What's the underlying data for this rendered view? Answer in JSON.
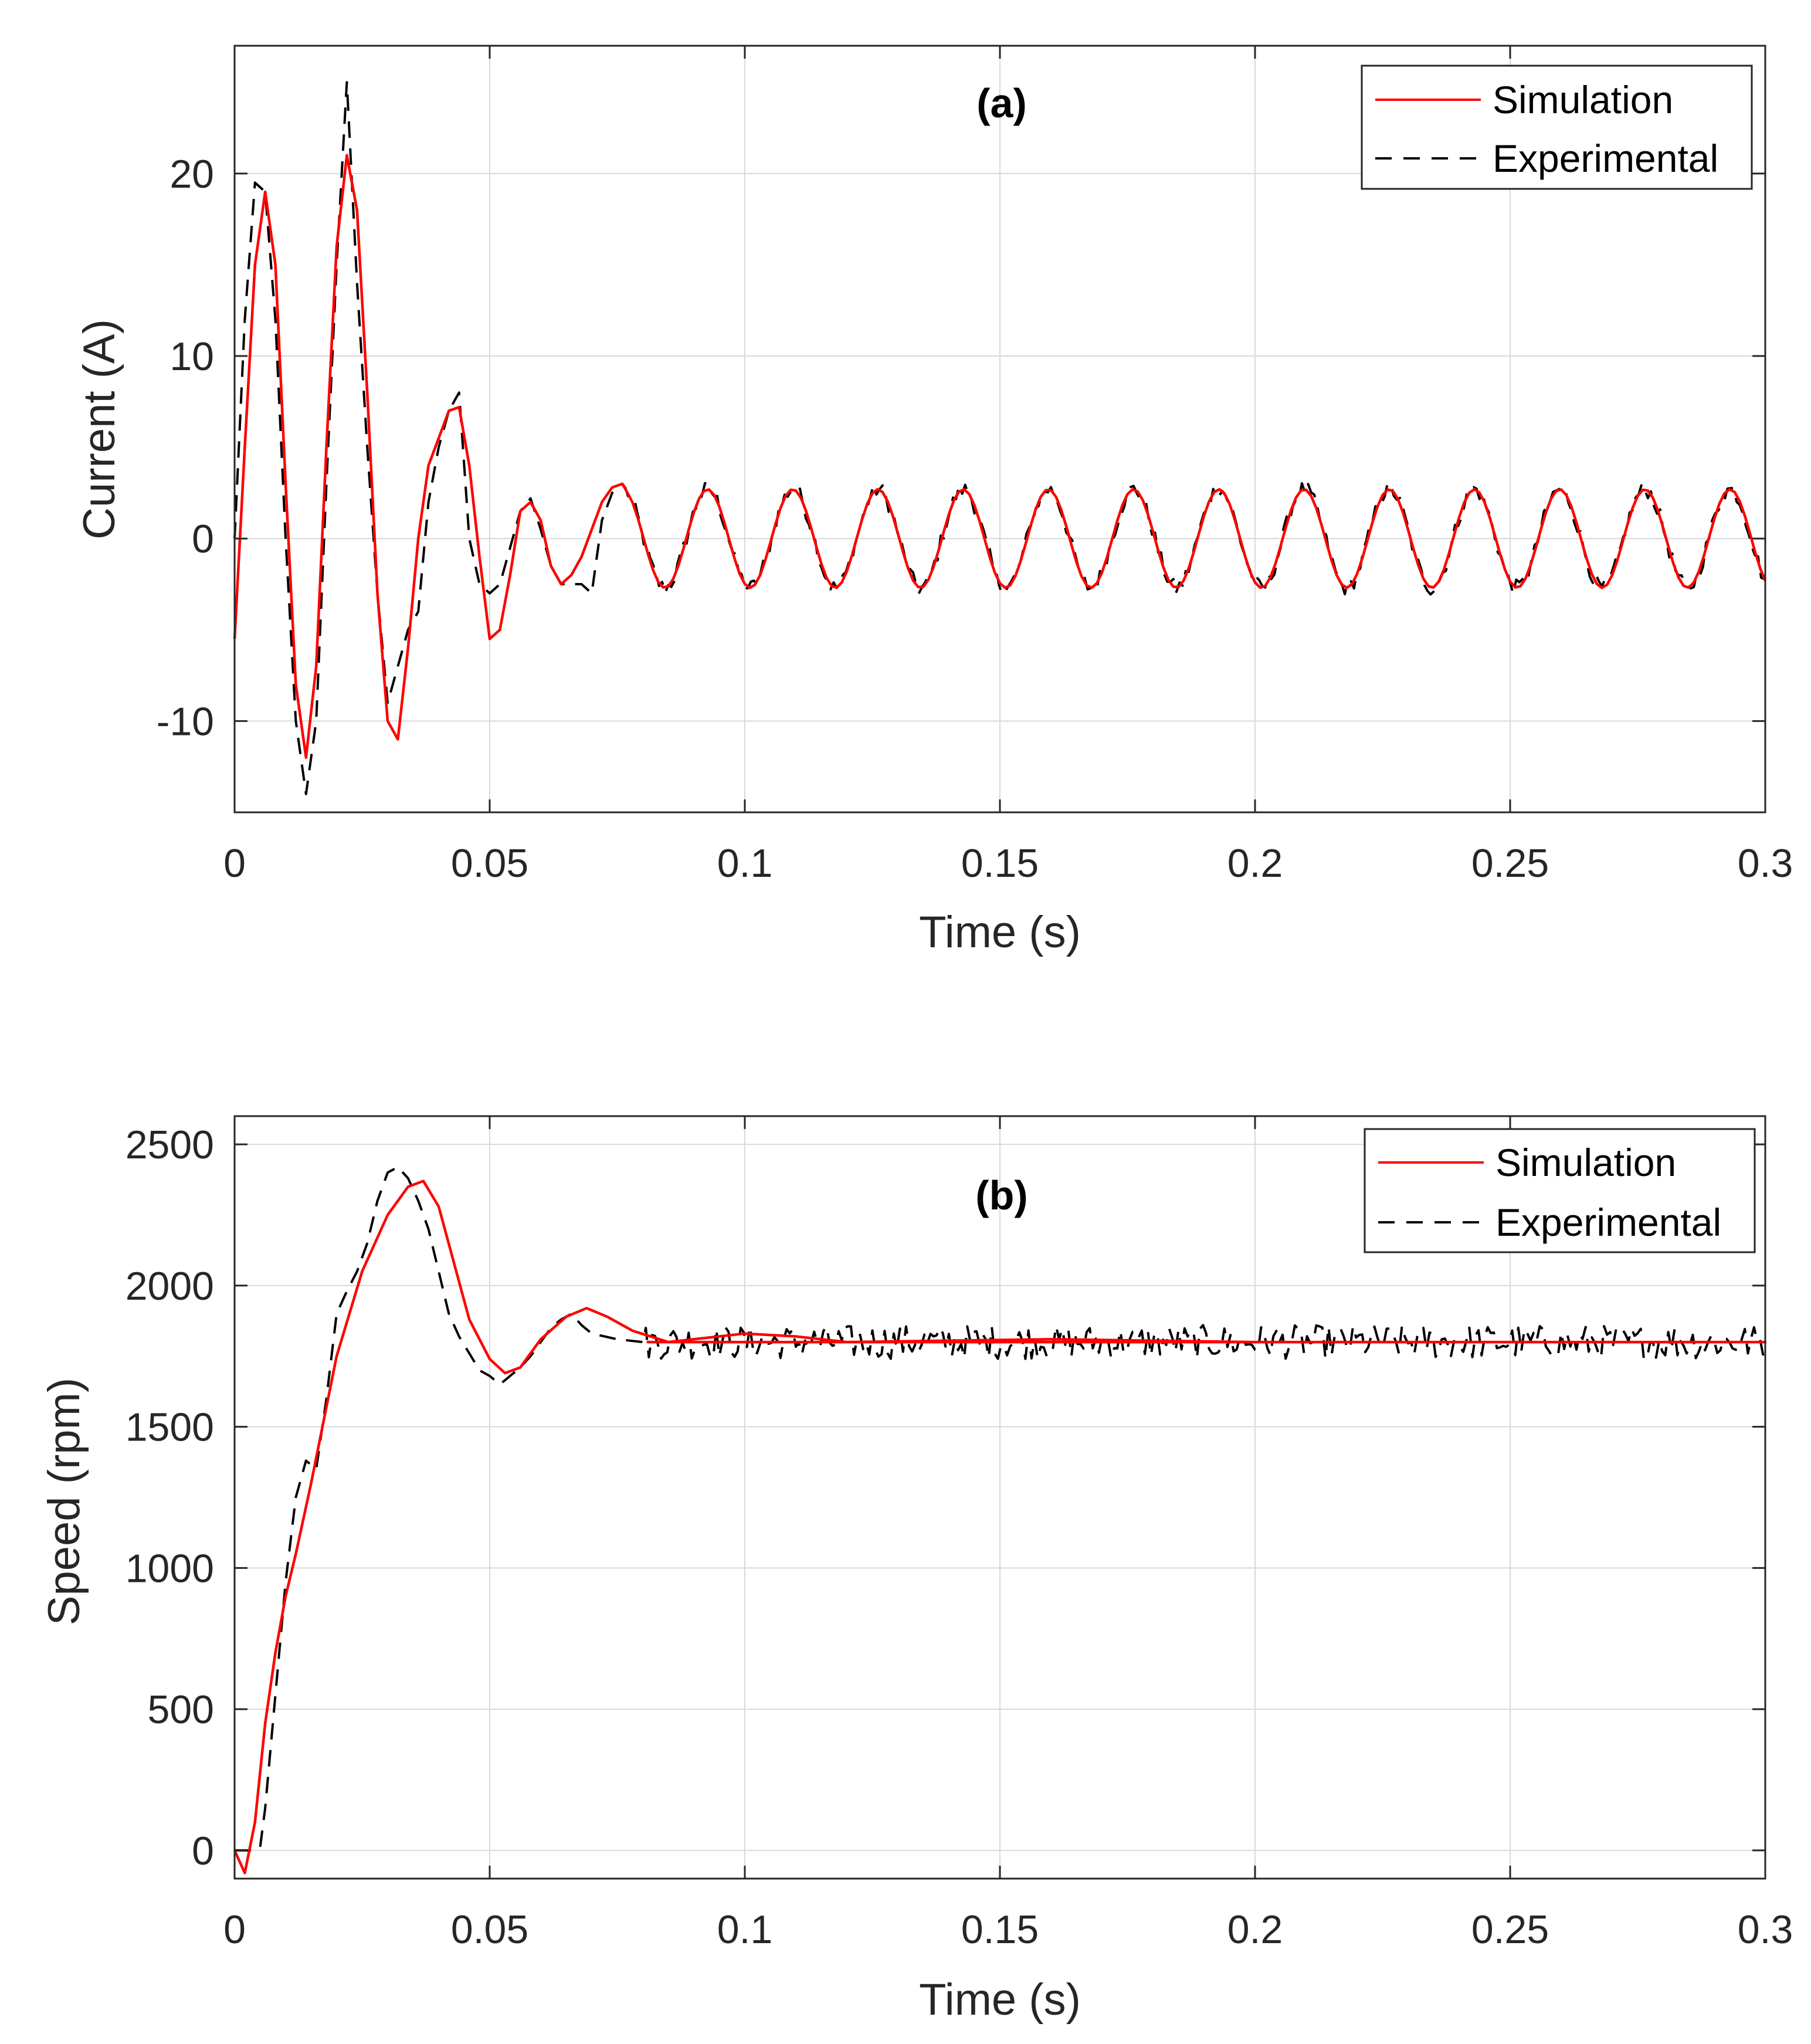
{
  "colors": {
    "simulation": "#ff0000",
    "experimental": "#000000",
    "grid": "#d9d9d9",
    "axis": "#262626"
  },
  "chart_data": [
    {
      "type": "line",
      "title": "(a)",
      "xlabel": "Time (s)",
      "ylabel": "Current (A)",
      "xlim": [
        0,
        0.3
      ],
      "ylim": [
        -15,
        27
      ],
      "xticks": [
        0,
        0.05,
        0.1,
        0.15,
        0.2,
        0.25,
        0.3
      ],
      "xtick_labels": [
        "0",
        "0.05",
        "0.1",
        "0.15",
        "0.2",
        "0.25",
        "0.3"
      ],
      "yticks": [
        -10,
        0,
        10,
        20
      ],
      "ytick_labels": [
        "-10",
        "0",
        "10",
        "20"
      ],
      "grid": true,
      "legend_position": "top-right",
      "series": [
        {
          "name": "Simulation",
          "style": "solid",
          "x": [
            0,
            0.002,
            0.004,
            0.006,
            0.008,
            0.01,
            0.012,
            0.014,
            0.016,
            0.018,
            0.02,
            0.022,
            0.024,
            0.026,
            0.028,
            0.03,
            0.032,
            0.034,
            0.036,
            0.038,
            0.04,
            0.042,
            0.044,
            0.046,
            0.048,
            0.05,
            0.052,
            0.054,
            0.056,
            0.058,
            0.06,
            0.062,
            0.064,
            0.066,
            0.068,
            0.07,
            0.072,
            0.074,
            0.076
          ],
          "y": [
            -5.5,
            5,
            15,
            19,
            15,
            3,
            -8,
            -12,
            -7,
            5,
            16,
            21,
            18,
            8,
            -3,
            -10,
            -11,
            -6,
            0,
            4,
            5.5,
            7,
            7.2,
            4,
            -1,
            -5.5,
            -5,
            -2,
            1.5,
            2,
            1,
            -1.5,
            -2.5,
            -2,
            -1,
            0.5,
            2,
            2.8,
            3
          ]
        },
        {
          "name": "Experimental",
          "style": "dashed",
          "x": [
            0,
            0.002,
            0.004,
            0.006,
            0.008,
            0.01,
            0.012,
            0.014,
            0.016,
            0.018,
            0.02,
            0.022,
            0.024,
            0.026,
            0.028,
            0.03,
            0.032,
            0.034,
            0.036,
            0.038,
            0.04,
            0.042,
            0.044,
            0.046,
            0.048,
            0.05,
            0.052,
            0.054,
            0.056,
            0.058,
            0.06,
            0.062,
            0.064,
            0.066,
            0.068,
            0.07,
            0.072,
            0.074,
            0.076
          ],
          "y": [
            0,
            12,
            19.5,
            19,
            12,
            0,
            -10,
            -14,
            -10,
            3,
            15,
            25,
            14,
            5,
            -3,
            -9,
            -7,
            -5,
            -4,
            2,
            5,
            7,
            8,
            0,
            -2.5,
            -3,
            -2.5,
            -0.5,
            1.5,
            2.2,
            0.5,
            -1.5,
            -2.5,
            -2.5,
            -2.5,
            -3,
            1,
            2.5,
            3
          ]
        }
      ],
      "steady_state": {
        "x_start": 0.076,
        "x_end": 0.3,
        "amplitude": 2.7,
        "period": 0.0167
      }
    },
    {
      "type": "line",
      "title": "(b)",
      "xlabel": "Time (s)",
      "ylabel": "Speed (rpm)",
      "xlim": [
        0,
        0.3
      ],
      "ylim": [
        -100,
        2600
      ],
      "xticks": [
        0,
        0.05,
        0.1,
        0.15,
        0.2,
        0.25,
        0.3
      ],
      "xtick_labels": [
        "0",
        "0.05",
        "0.1",
        "0.15",
        "0.2",
        "0.25",
        "0.3"
      ],
      "yticks": [
        0,
        500,
        1000,
        1500,
        2000,
        2500
      ],
      "ytick_labels": [
        "0",
        "500",
        "1000",
        "1500",
        "2000",
        "2500"
      ],
      "grid": true,
      "legend_position": "top-right",
      "series": [
        {
          "name": "Simulation",
          "style": "solid",
          "x": [
            0,
            0.002,
            0.004,
            0.006,
            0.008,
            0.01,
            0.012,
            0.015,
            0.02,
            0.025,
            0.03,
            0.034,
            0.037,
            0.04,
            0.043,
            0.046,
            0.05,
            0.053,
            0.056,
            0.06,
            0.065,
            0.069,
            0.073,
            0.078,
            0.085,
            0.09,
            0.1,
            0.11,
            0.12,
            0.14,
            0.16,
            0.2,
            0.25,
            0.3
          ],
          "y": [
            0,
            -80,
            100,
            450,
            700,
            900,
            1050,
            1300,
            1750,
            2050,
            2250,
            2350,
            2370,
            2280,
            2080,
            1880,
            1740,
            1690,
            1710,
            1810,
            1890,
            1920,
            1890,
            1840,
            1800,
            1810,
            1830,
            1820,
            1800,
            1805,
            1810,
            1800,
            1800,
            1800
          ]
        },
        {
          "name": "Experimental",
          "style": "dashed",
          "x": [
            0,
            0.002,
            0.004,
            0.005,
            0.006,
            0.008,
            0.01,
            0.012,
            0.014,
            0.016,
            0.018,
            0.02,
            0.022,
            0.024,
            0.026,
            0.028,
            0.03,
            0.032,
            0.034,
            0.036,
            0.038,
            0.04,
            0.042,
            0.044,
            0.046,
            0.048,
            0.05,
            0.052,
            0.054,
            0.056,
            0.058,
            0.06,
            0.062,
            0.064,
            0.066,
            0.068,
            0.07,
            0.075,
            0.08
          ],
          "y": [
            0,
            0,
            0,
            10,
            150,
            550,
            950,
            1250,
            1380,
            1350,
            1600,
            1900,
            1980,
            2050,
            2150,
            2300,
            2400,
            2420,
            2380,
            2300,
            2200,
            2050,
            1900,
            1820,
            1760,
            1700,
            1680,
            1650,
            1680,
            1710,
            1750,
            1800,
            1850,
            1880,
            1900,
            1860,
            1830,
            1810,
            1800
          ]
        }
      ],
      "steady_state": {
        "x_start": 0.08,
        "x_end": 0.3,
        "level": 1800,
        "noise": 60
      }
    }
  ]
}
